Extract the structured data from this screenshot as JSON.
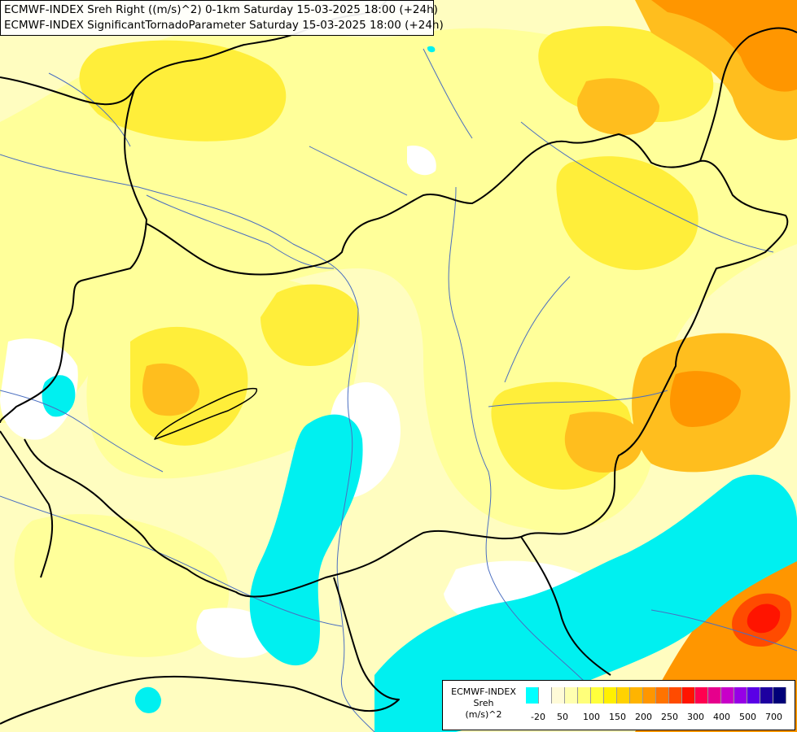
{
  "title": {
    "line1": "ECMWF-INDEX Sreh Right ((m/s)^2) 0-1km Saturday 15-03-2025 18:00 (+24h)",
    "line2": "ECMWF-INDEX SignificantTornadoParameter Saturday 15-03-2025 18:00 (+24h)"
  },
  "legend": {
    "line1": "ECMWF-INDEX",
    "line2": "Sreh",
    "line3": "(m/s)^2",
    "colors": [
      "#00ffff",
      "#ffffff",
      "#fffbd8",
      "#ffffb0",
      "#ffff7a",
      "#ffff3c",
      "#fff000",
      "#ffd200",
      "#ffb400",
      "#ff9600",
      "#ff7300",
      "#ff4b00",
      "#ff1400",
      "#ff0050",
      "#e6008c",
      "#c800c8",
      "#9600e6",
      "#5a00e6",
      "#1e00a0",
      "#000078"
    ],
    "ticks": [
      {
        "label": "-20",
        "swatch": 1
      },
      {
        "label": "50",
        "swatch": 3
      },
      {
        "label": "100",
        "swatch": 5
      },
      {
        "label": "150",
        "swatch": 7
      },
      {
        "label": "200",
        "swatch": 9
      },
      {
        "label": "250",
        "swatch": 11
      },
      {
        "label": "300",
        "swatch": 13
      },
      {
        "label": "400",
        "swatch": 15
      },
      {
        "label": "500",
        "swatch": 17
      },
      {
        "label": "700",
        "swatch": 19
      }
    ]
  }
}
